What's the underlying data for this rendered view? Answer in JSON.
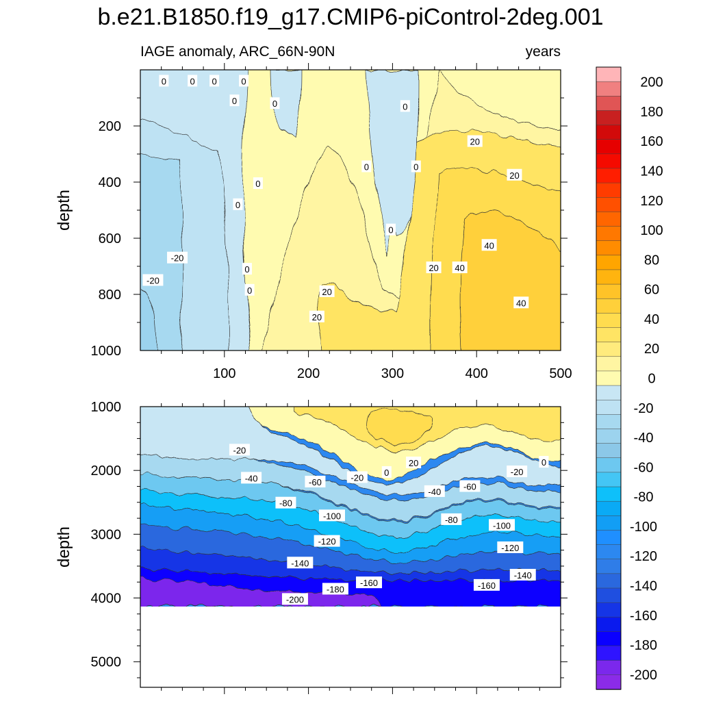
{
  "chart_data": {
    "type": "heatmap",
    "title": "b.e21.B1850.f19_g17.CMIP6-piControl-2deg.001",
    "subtitle_left": "IAGE anomaly, ARC_66N-90N",
    "subtitle_right": "years",
    "variable": "IAGE anomaly",
    "units": "years",
    "x_range": [
      0,
      500
    ],
    "panels": [
      {
        "name": "upper",
        "ylabel": "depth",
        "ylim": [
          1000,
          0
        ],
        "xticks": [
          100,
          200,
          300,
          400,
          500
        ],
        "yticks": [
          200,
          400,
          600,
          800,
          1000
        ],
        "contour_labels": [
          {
            "text": "0",
            "x": 28,
            "y": 40
          },
          {
            "text": "0",
            "x": 62,
            "y": 40
          },
          {
            "text": "0",
            "x": 88,
            "y": 40
          },
          {
            "text": "0",
            "x": 123,
            "y": 40
          },
          {
            "text": "0",
            "x": 112,
            "y": 110
          },
          {
            "text": "0",
            "x": 160,
            "y": 120
          },
          {
            "text": "0",
            "x": 315,
            "y": 130
          },
          {
            "text": "20",
            "x": 398,
            "y": 255
          },
          {
            "text": "0",
            "x": 269,
            "y": 345
          },
          {
            "text": "0",
            "x": 328,
            "y": 345
          },
          {
            "text": "0",
            "x": 140,
            "y": 405
          },
          {
            "text": "20",
            "x": 445,
            "y": 375
          },
          {
            "text": "0",
            "x": 116,
            "y": 480
          },
          {
            "text": "0",
            "x": 298,
            "y": 570
          },
          {
            "text": "40",
            "x": 415,
            "y": 625
          },
          {
            "text": "-20",
            "x": 44,
            "y": 670
          },
          {
            "text": "0",
            "x": 127,
            "y": 710
          },
          {
            "text": "20",
            "x": 349,
            "y": 705
          },
          {
            "text": "40",
            "x": 380,
            "y": 705
          },
          {
            "text": "-20",
            "x": 15,
            "y": 750
          },
          {
            "text": "0",
            "x": 130,
            "y": 785
          },
          {
            "text": "20",
            "x": 222,
            "y": 790
          },
          {
            "text": "40",
            "x": 453,
            "y": 830
          },
          {
            "text": "20",
            "x": 210,
            "y": 880
          }
        ]
      },
      {
        "name": "lower",
        "ylabel": "depth",
        "ylim": [
          5400,
          1000
        ],
        "xticks": [
          100,
          200,
          300,
          400,
          500
        ],
        "yticks": [
          1000,
          2000,
          3000,
          4000,
          5000
        ],
        "contour_labels": [
          {
            "text": "-20",
            "x": 118,
            "y": 1680
          },
          {
            "text": "-40",
            "x": 132,
            "y": 2120
          },
          {
            "text": "-60",
            "x": 208,
            "y": 2180
          },
          {
            "text": "-20",
            "x": 258,
            "y": 2110
          },
          {
            "text": "0",
            "x": 293,
            "y": 2030
          },
          {
            "text": "20",
            "x": 325,
            "y": 1880
          },
          {
            "text": "-40",
            "x": 350,
            "y": 2330
          },
          {
            "text": "-60",
            "x": 392,
            "y": 2250
          },
          {
            "text": "-20",
            "x": 448,
            "y": 2020
          },
          {
            "text": "0",
            "x": 480,
            "y": 1870
          },
          {
            "text": "-80",
            "x": 173,
            "y": 2510
          },
          {
            "text": "-100",
            "x": 228,
            "y": 2710
          },
          {
            "text": "-80",
            "x": 370,
            "y": 2770
          },
          {
            "text": "-100",
            "x": 430,
            "y": 2860
          },
          {
            "text": "-120",
            "x": 222,
            "y": 3110
          },
          {
            "text": "-120",
            "x": 440,
            "y": 3210
          },
          {
            "text": "-140",
            "x": 190,
            "y": 3450
          },
          {
            "text": "-140",
            "x": 455,
            "y": 3640
          },
          {
            "text": "-160",
            "x": 272,
            "y": 3760
          },
          {
            "text": "-160",
            "x": 412,
            "y": 3800
          },
          {
            "text": "-180",
            "x": 232,
            "y": 3860
          },
          {
            "text": "-200",
            "x": 184,
            "y": 4020
          }
        ]
      }
    ],
    "colorbar": {
      "labels": [
        "200",
        "180",
        "160",
        "140",
        "120",
        "100",
        "80",
        "60",
        "40",
        "20",
        "0",
        "-20",
        "-40",
        "-60",
        "-80",
        "-100",
        "-120",
        "-140",
        "-160",
        "-180",
        "-200"
      ],
      "levels": [
        -210,
        -200,
        -190,
        -180,
        -170,
        -160,
        -150,
        -140,
        -130,
        -120,
        -110,
        -100,
        -90,
        -80,
        -70,
        -60,
        -50,
        -40,
        -30,
        -20,
        -10,
        0,
        10,
        20,
        30,
        40,
        50,
        60,
        70,
        80,
        90,
        100,
        110,
        120,
        130,
        140,
        150,
        160,
        170,
        180,
        190,
        200,
        210
      ],
      "colors": [
        "#8B2BE8",
        "#7B28EC",
        "#2F14FF",
        "#0A00FF",
        "#0A1AEE",
        "#1535E6",
        "#1F4FE0",
        "#2A68DE",
        "#2F7DE8",
        "#2C88F0",
        "#1F8FFF",
        "#129EF5",
        "#0AAAF5",
        "#0EC0FA",
        "#44C6F5",
        "#6DC8F0",
        "#8CC8E8",
        "#9CD3EE",
        "#A7D9F0",
        "#BEE2F3",
        "#C8E6F4",
        "#FFFBB0",
        "#FFF5A2",
        "#FFEB7D",
        "#FFE464",
        "#FFDC4F",
        "#FFD03A",
        "#FFC328",
        "#FFB40F",
        "#FFA500",
        "#FF8C00",
        "#FF7800",
        "#FF6600",
        "#FF5000",
        "#FF3C00",
        "#FF1E00",
        "#F50A00",
        "#E60000",
        "#D20A0A",
        "#C82020",
        "#E05555",
        "#F08080",
        "#FFB5B8"
      ]
    }
  }
}
